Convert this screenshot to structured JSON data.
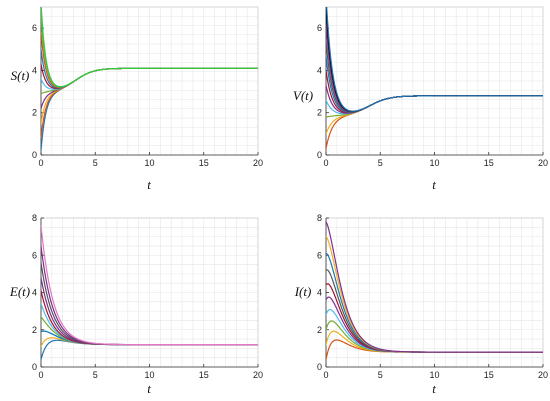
{
  "figure": {
    "panels": [
      {
        "id": "S",
        "ylabel": "S(t)",
        "xlabel": "t"
      },
      {
        "id": "V",
        "ylabel": "V(t)",
        "xlabel": "t"
      },
      {
        "id": "E",
        "ylabel": "E(t)",
        "xlabel": "t"
      },
      {
        "id": "I",
        "ylabel": "I(t)",
        "xlabel": "t"
      }
    ]
  },
  "chart_data": [
    {
      "type": "line",
      "panel": "S",
      "xlabel": "t",
      "ylabel": "S(t)",
      "xlim": [
        0,
        20
      ],
      "ylim": [
        0,
        7
      ],
      "xticks": [
        0,
        5,
        10,
        15,
        20
      ],
      "yticks": [
        0,
        2,
        4,
        6
      ],
      "grid": true,
      "steady_state": 4.1,
      "series": [
        {
          "y0": 0.2,
          "color": "#1f77b4"
        },
        {
          "y0": 0.8,
          "color": "#d95319"
        },
        {
          "y0": 1.5,
          "color": "#edb120"
        },
        {
          "y0": 2.2,
          "color": "#7e2f8e"
        },
        {
          "y0": 2.9,
          "color": "#77ac30"
        },
        {
          "y0": 3.6,
          "color": "#4dbeee"
        },
        {
          "y0": 4.3,
          "color": "#a2142f"
        },
        {
          "y0": 5.0,
          "color": "#1f77b4"
        },
        {
          "y0": 5.8,
          "color": "#d95319"
        },
        {
          "y0": 6.6,
          "color": "#77ac30"
        },
        {
          "y0": 7.2,
          "color": "#2ecc40"
        }
      ]
    },
    {
      "type": "line",
      "panel": "V",
      "xlabel": "t",
      "ylabel": "V(t)",
      "xlim": [
        0,
        20
      ],
      "ylim": [
        0,
        7
      ],
      "xticks": [
        0,
        5,
        10,
        15,
        20
      ],
      "yticks": [
        0,
        2,
        4,
        6
      ],
      "grid": true,
      "steady_state": 2.8,
      "series": [
        {
          "y0": 0.3,
          "color": "#d95319"
        },
        {
          "y0": 1.0,
          "color": "#edb120"
        },
        {
          "y0": 1.8,
          "color": "#77ac30"
        },
        {
          "y0": 2.6,
          "color": "#4dbeee"
        },
        {
          "y0": 3.3,
          "color": "#7e2f8e"
        },
        {
          "y0": 4.0,
          "color": "#a2142f"
        },
        {
          "y0": 4.7,
          "color": "#1f77b4"
        },
        {
          "y0": 5.4,
          "color": "#555555"
        },
        {
          "y0": 6.2,
          "color": "#7e2f8e"
        },
        {
          "y0": 7.0,
          "color": "#000000"
        },
        {
          "y0": 7.6,
          "color": "#1f77b4"
        }
      ]
    },
    {
      "type": "line",
      "panel": "E",
      "xlabel": "t",
      "ylabel": "E(t)",
      "xlim": [
        0,
        20
      ],
      "ylim": [
        0,
        8
      ],
      "xticks": [
        0,
        5,
        10,
        15,
        20
      ],
      "yticks": [
        0,
        2,
        4,
        6,
        8
      ],
      "grid": true,
      "steady_state": 1.2,
      "series": [
        {
          "y0": 0.4,
          "color": "#1f77b4"
        },
        {
          "y0": 1.1,
          "color": "#edb120"
        },
        {
          "y0": 1.9,
          "color": "#0072bd"
        },
        {
          "y0": 2.7,
          "color": "#77ac30"
        },
        {
          "y0": 3.4,
          "color": "#4dbeee"
        },
        {
          "y0": 4.1,
          "color": "#a2142f"
        },
        {
          "y0": 4.8,
          "color": "#7e2f8e"
        },
        {
          "y0": 5.6,
          "color": "#555555"
        },
        {
          "y0": 6.5,
          "color": "#7e2f8e"
        },
        {
          "y0": 7.6,
          "color": "#e377c2"
        }
      ]
    },
    {
      "type": "line",
      "panel": "I",
      "xlabel": "t",
      "ylabel": "I(t)",
      "xlim": [
        0,
        20
      ],
      "ylim": [
        0,
        8
      ],
      "xticks": [
        0,
        5,
        10,
        15,
        20
      ],
      "yticks": [
        0,
        2,
        4,
        6,
        8
      ],
      "grid": true,
      "steady_state": 0.8,
      "series": [
        {
          "y0": 0.4,
          "color": "#d95319"
        },
        {
          "y0": 1.2,
          "color": "#edb120"
        },
        {
          "y0": 2.0,
          "color": "#77ac30"
        },
        {
          "y0": 2.8,
          "color": "#4dbeee"
        },
        {
          "y0": 3.6,
          "color": "#7e2f8e"
        },
        {
          "y0": 4.4,
          "color": "#a2142f"
        },
        {
          "y0": 5.2,
          "color": "#555555"
        },
        {
          "y0": 6.1,
          "color": "#1f77b4"
        },
        {
          "y0": 7.0,
          "color": "#edb120"
        },
        {
          "y0": 7.8,
          "color": "#7e2f8e"
        }
      ]
    }
  ]
}
